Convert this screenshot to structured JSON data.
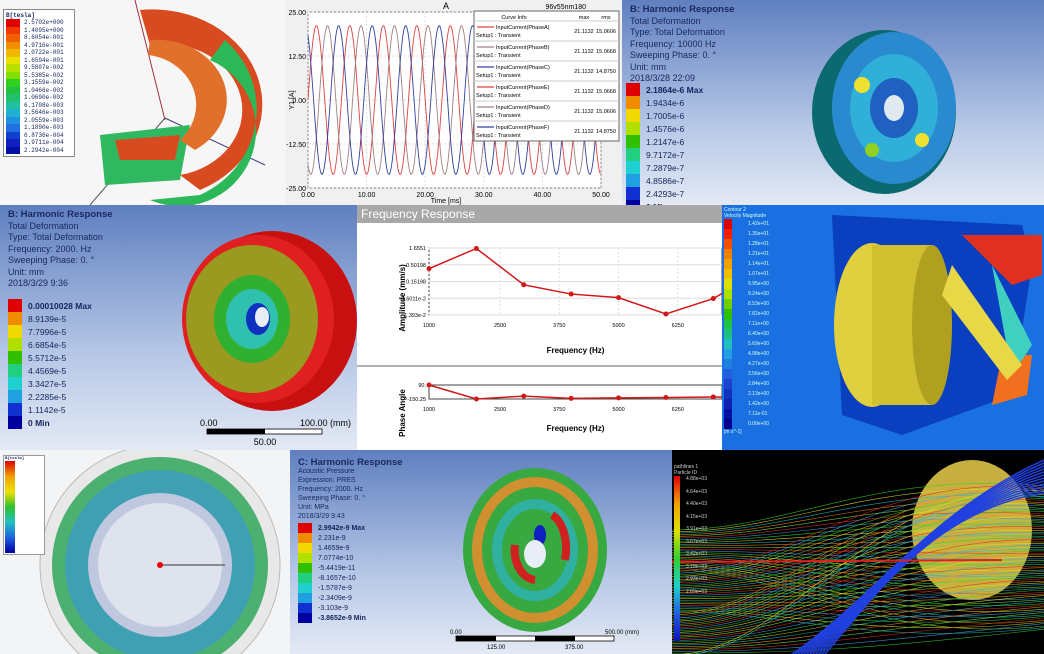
{
  "panelA": {
    "legend_title": "B[tesla]",
    "values": [
      "2.5702e+000",
      "1.4095e+000",
      "8.6054e-001",
      "4.9716e-001",
      "2.0722e-001",
      "1.6594e-001",
      "9.5807e-002",
      "5.5385e-002",
      "3.1559e-002",
      "1.0466e-002",
      "1.0690e-002",
      "6.1708e-003",
      "3.5646e-003",
      "2.0559e-003",
      "1.1890e-003",
      "6.8736e-004",
      "3.9711e-004",
      "2.2942e-004"
    ],
    "colors": [
      "#e00000",
      "#f03a00",
      "#f06000",
      "#f09000",
      "#f0b800",
      "#e8e000",
      "#b8e000",
      "#80e000",
      "#30d020",
      "#20c040",
      "#20c070",
      "#20c0a0",
      "#20b0d0",
      "#2090e0",
      "#2070e0",
      "#1040d0",
      "#1020c0",
      "#0010a0"
    ]
  },
  "panelB": {
    "title": "A",
    "project": "96v55nm180",
    "y_label": "Y1 [A]",
    "x_label": "Time [ms]",
    "legend_headers": [
      "Curve Info",
      "max",
      "rms"
    ],
    "chart_data": {
      "type": "line",
      "xlim": [
        0,
        50
      ],
      "ylim": [
        -25,
        25
      ],
      "x_ticks": [
        "0.00",
        "10.00",
        "20.00",
        "30.00",
        "40.00",
        "50.00"
      ],
      "y_ticks": [
        "25.00",
        "12.50",
        "0.00",
        "-12.50",
        "-25.00"
      ],
      "amplitude": 21.1132,
      "frequency_hz": 175,
      "grid": true,
      "series": [
        {
          "name": "InputCurrent(PhaseA)",
          "sub": "Setup1 : Transient",
          "max": "21.1132",
          "rms": "15.0606",
          "color": "#e04040",
          "phase_deg": 0
        },
        {
          "name": "InputCurrent(PhaseB)",
          "sub": "Setup1 : Transient",
          "max": "21.1132",
          "rms": "15.0668",
          "color": "#a08080",
          "phase_deg": 120
        },
        {
          "name": "InputCurrent(PhaseC)",
          "sub": "Setup1 : Transient",
          "max": "21.1132",
          "rms": "14.8750",
          "color": "#3040a0",
          "phase_deg": 240
        },
        {
          "name": "InputCurrent(PhaseE)",
          "sub": "Setup1 : Transient",
          "max": "21.1132",
          "rms": "15.0668",
          "color": "#e04040",
          "phase_deg": 0
        },
        {
          "name": "InputCurrent(PhaseD)",
          "sub": "Setup1 : Transient",
          "max": "21.1132",
          "rms": "15.0606",
          "color": "#a08080",
          "phase_deg": 120
        },
        {
          "name": "InputCurrent(PhaseF)",
          "sub": "Setup1 : Transient",
          "max": "21.1132",
          "rms": "14.8750",
          "color": "#3040a0",
          "phase_deg": 240
        }
      ]
    }
  },
  "panelC": {
    "info": [
      "B: Harmonic Response",
      "Total Deformation",
      "Type: Total Deformation",
      "Frequency: 10000 Hz",
      "Sweeping Phase: 0. °",
      "Unit: mm",
      "2018/3/28 22:09"
    ],
    "values": [
      "2.1864e-6 Max",
      "1.9434e-6",
      "1.7005e-6",
      "1.4576e-6",
      "1.2147e-6",
      "9.7172e-7",
      "7.2879e-7",
      "4.8586e-7",
      "2.4293e-7",
      "0 Min"
    ]
  },
  "panelD": {
    "info": [
      "B: Harmonic Response",
      "Total Deformation",
      "Type: Total Deformation",
      "Frequency: 2000. Hz",
      "Sweeping Phase: 0. °",
      "Unit: mm",
      "2018/3/29 9:36"
    ],
    "values": [
      "0.00010028 Max",
      "8.9139e-5",
      "7.7996e-5",
      "6.6854e-5",
      "5.5712e-5",
      "4.4569e-5",
      "3.3427e-5",
      "2.2285e-5",
      "1.1142e-5",
      "0 Min"
    ],
    "scale": [
      "0.00",
      "100.00 (mm)",
      "50.00"
    ]
  },
  "panelE": {
    "title": "Frequency Response",
    "chart_data": [
      {
        "type": "line",
        "ylabel": "Amplitude (mm/s)",
        "xlabel": "Frequency (Hz)",
        "log_y": true,
        "ylim": [
          0.01393,
          1.6551
        ],
        "xlim": [
          1000,
          7500
        ],
        "y_ticks": [
          "1.6551",
          "0.50198",
          "0.15198",
          "4.6011e-2",
          "1.393e-2"
        ],
        "x_ticks": [
          "1000",
          "2500",
          "3750",
          "5000",
          "6250",
          "7500"
        ],
        "x": [
          1000,
          2000,
          3000,
          4000,
          5000,
          6000,
          7000,
          7500
        ],
        "y": [
          0.38,
          1.6,
          0.12,
          0.062,
          0.048,
          0.015,
          0.045,
          0.12
        ]
      },
      {
        "type": "line",
        "ylabel": "Phase Angle",
        "xlabel": "Frequency (Hz)",
        "ylim": [
          -150.25,
          90
        ],
        "xlim": [
          1000,
          7500
        ],
        "y_ticks": [
          "90.",
          "-150.25"
        ],
        "x_ticks": [
          "1000",
          "2500",
          "3750",
          "5000",
          "6250",
          "7500"
        ],
        "x": [
          1000,
          2000,
          3000,
          4000,
          5000,
          6000,
          7000,
          7500
        ],
        "y": [
          90,
          -150,
          -100,
          -140,
          -130,
          -125,
          -115,
          -115
        ]
      }
    ]
  },
  "panelF": {
    "legend_title": "Contour 2",
    "legend_sub": "Velocity Magnitude",
    "values": [
      "1.42e+01",
      "1.35e+01",
      "1.28e+01",
      "1.21e+01",
      "1.14e+01",
      "1.07e+01",
      "9.95e+00",
      "9.24e+00",
      "8.53e+00",
      "7.82e+00",
      "7.11e+00",
      "6.40e+00",
      "5.69e+00",
      "4.98e+00",
      "4.27e+00",
      "3.56e+00",
      "2.84e+00",
      "2.13e+00",
      "1.42e+00",
      "7.11e-01",
      "0.00e+00"
    ],
    "unit": "[m s^-1]"
  },
  "panelG": {
    "legend_title": "B[tesla]"
  },
  "panelH": {
    "info": [
      "C: Harmonic Response",
      "Acoustic Pressure",
      "Expression: PRES",
      "Frequency: 2000. Hz",
      "Sweeping Phase: 0. °",
      "Unit: MPa",
      "2018/3/29 9:43"
    ],
    "values": [
      "2.9942e-9 Max",
      "2.231e-9",
      "1.4659e-9",
      "7.0774e-10",
      "-5.4419e-11",
      "-8.1657e-10",
      "-1.5787e-9",
      "-2.3409e-9",
      "-3.103e-9",
      "-3.8652e-9 Min"
    ],
    "scale": [
      "0.00",
      "500.00 (mm)",
      "125.00",
      "375.00"
    ]
  },
  "panelI": {
    "legend_title": "pathlines 1",
    "legend_sub": "Particle ID",
    "values": [
      "4.88e+03",
      "4.64e+03",
      "4.40e+03",
      "4.15e+03",
      "3.91e+03",
      "3.67e+03",
      "3.42e+03",
      "3.18e+03",
      "2.93e+03",
      "2.69e+03"
    ]
  },
  "ans_colors": [
    "#e00000",
    "#f08c00",
    "#f0d800",
    "#b0e000",
    "#30c000",
    "#20d080",
    "#20d0d0",
    "#20a0e0",
    "#1030d0",
    "#0000a0"
  ]
}
